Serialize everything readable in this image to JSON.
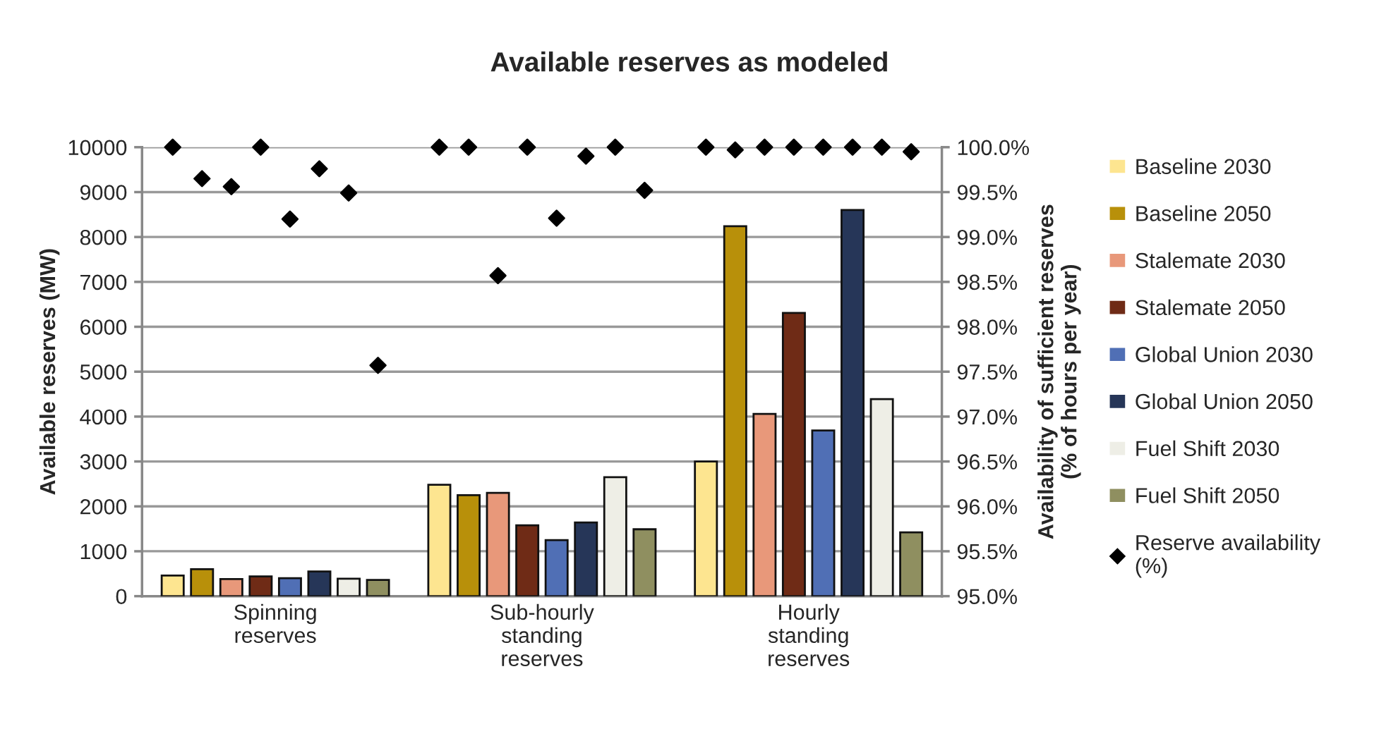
{
  "chart_data": {
    "type": "bar",
    "title": "Available reserves as modeled",
    "ylabel": "Available reserves (MW)",
    "y2label": "Availability of sufficient reserves\n(% of hours per year)",
    "categories": [
      "Spinning\nreserves",
      "Sub-hourly\nstanding\nreserves",
      "Hourly\nstanding\nreserves"
    ],
    "series": [
      {
        "name": "Baseline 2030",
        "color": "#fde590",
        "values": [
          460,
          2480,
          3000
        ]
      },
      {
        "name": "Baseline 2050",
        "color": "#b8900a",
        "values": [
          600,
          2250,
          8240
        ]
      },
      {
        "name": "Stalemate 2030",
        "color": "#e8987a",
        "values": [
          380,
          2300,
          4060
        ]
      },
      {
        "name": "Stalemate 2050",
        "color": "#6f2b16",
        "values": [
          440,
          1580,
          6310
        ]
      },
      {
        "name": "Global Union 2030",
        "color": "#506fb5",
        "values": [
          400,
          1250,
          3690
        ]
      },
      {
        "name": "Global Union 2050",
        "color": "#263658",
        "values": [
          550,
          1640,
          8600
        ]
      },
      {
        "name": "Fuel Shift 2030",
        "color": "#eeeee6",
        "values": [
          390,
          2650,
          4390
        ]
      },
      {
        "name": "Fuel Shift 2050",
        "color": "#8f8f60",
        "values": [
          360,
          1490,
          1420
        ]
      },
      {
        "name": "Reserve availability\n(%)",
        "type": "scatter",
        "axis": "y2",
        "color": "#000000",
        "marker": "diamond",
        "x": [
          "Spinning\nreserves",
          "Spinning\nreserves",
          "Spinning\nreserves",
          "Spinning\nreserves",
          "Spinning\nreserves",
          "Spinning\nreserves",
          "Spinning\nreserves",
          "Spinning\nreserves",
          "Sub-hourly\nstanding\nreserves",
          "Sub-hourly\nstanding\nreserves",
          "Sub-hourly\nstanding\nreserves",
          "Sub-hourly\nstanding\nreserves",
          "Sub-hourly\nstanding\nreserves",
          "Sub-hourly\nstanding\nreserves",
          "Sub-hourly\nstanding\nreserves",
          "Sub-hourly\nstanding\nreserves",
          "Hourly\nstanding\nreserves",
          "Hourly\nstanding\nreserves",
          "Hourly\nstanding\nreserves",
          "Hourly\nstanding\nreserves",
          "Hourly\nstanding\nreserves",
          "Hourly\nstanding\nreserves",
          "Hourly\nstanding\nreserves",
          "Hourly\nstanding\nreserves"
        ],
        "values": [
          100,
          99.65,
          99.56,
          100,
          99.2,
          99.76,
          99.49,
          97.57,
          100,
          100,
          98.57,
          100,
          99.21,
          99.9,
          100,
          99.52,
          100,
          99.97,
          100,
          100,
          100,
          100,
          100,
          99.95
        ]
      }
    ],
    "ylim": [
      0,
      10000
    ],
    "yticks": [
      0,
      1000,
      2000,
      3000,
      4000,
      5000,
      6000,
      7000,
      8000,
      9000,
      10000
    ],
    "y2lim": [
      95,
      100
    ],
    "y2ticks": [
      {
        "value": 95,
        "label": "95.0%"
      },
      {
        "value": 95.5,
        "label": "95.5%"
      },
      {
        "value": 96,
        "label": "96.0%"
      },
      {
        "value": 96.5,
        "label": "96.5%"
      },
      {
        "value": 97,
        "label": "97.0%"
      },
      {
        "value": 97.5,
        "label": "97.5%"
      },
      {
        "value": 98,
        "label": "98.0%"
      },
      {
        "value": 98.5,
        "label": "98.5%"
      },
      {
        "value": 99,
        "label": "99.0%"
      },
      {
        "value": 99.5,
        "label": "99.5%"
      },
      {
        "value": 100,
        "label": "100.0%"
      }
    ],
    "grid": "y",
    "legend": "right"
  }
}
